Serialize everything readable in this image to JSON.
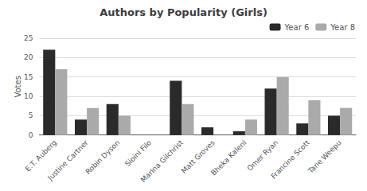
{
  "chart_data": {
    "type": "bar",
    "title": "Authors by Popularity (Girls)",
    "ylabel": "Votes",
    "categories": [
      "E.T. Auberg",
      "Justine Cartner",
      "Robin Dyson",
      "Sioini Filo",
      "Marina Gilchrist",
      "Matt Groves",
      "Bheka Kaleni",
      "Omer Ryan",
      "Francine Scott",
      "Tane Weepu"
    ],
    "series": [
      {
        "name": "Year 6",
        "color": "#2a2a2a",
        "values": [
          22,
          4,
          8,
          0,
          14,
          2,
          1,
          12,
          3,
          5
        ]
      },
      {
        "name": "Year 8",
        "color": "#aaaaaa",
        "values": [
          17,
          7,
          5,
          0,
          8,
          0,
          4,
          15,
          9,
          7
        ]
      }
    ],
    "ylim": [
      0,
      25
    ],
    "yticks": [
      0,
      5,
      10,
      15,
      20,
      25
    ],
    "grid": true,
    "legend": "upper right"
  }
}
